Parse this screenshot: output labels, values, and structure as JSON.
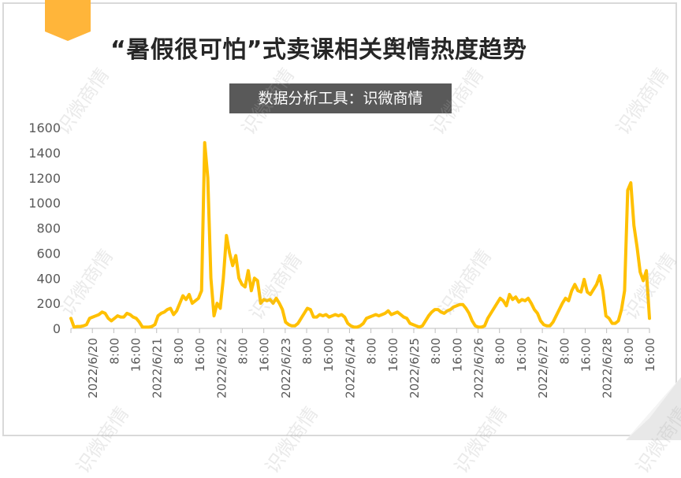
{
  "title": "“暑假很可怕”式卖课相关舆情热度趋势",
  "subtitle": "数据分析工具：识微商情",
  "watermark_text": "识微商情",
  "colors": {
    "line": "#FFC000",
    "accent": "#FFB53A",
    "axis": "#bfbfbf",
    "text": "#595959"
  },
  "chart_data": {
    "type": "line",
    "title": "“暑假很可怕”式卖课相关舆情热度趋势",
    "xlabel": "",
    "ylabel": "",
    "ylim": [
      0,
      1600
    ],
    "yticks": [
      0,
      200,
      400,
      600,
      800,
      1000,
      1200,
      1400,
      1600
    ],
    "grid": false,
    "x_tick_labels": [
      "2022/6/20",
      "8:00",
      "16:00",
      "2022/6/21",
      "8:00",
      "16:00",
      "2022/6/22",
      "8:00",
      "16:00",
      "2022/6/23",
      "8:00",
      "16:00",
      "2022/6/24",
      "8:00",
      "16:00",
      "2022/6/25",
      "8:00",
      "16:00",
      "2022/6/26",
      "8:00",
      "16:00",
      "2022/6/27",
      "8:00",
      "16:00",
      "2022/6/28",
      "8:00",
      "16:00"
    ],
    "x_hours_per_tick": 8,
    "series": [
      {
        "values": [
          80,
          10,
          15,
          15,
          20,
          30,
          80,
          90,
          100,
          110,
          130,
          120,
          80,
          60,
          80,
          100,
          90,
          90,
          120,
          110,
          90,
          80,
          50,
          10,
          10,
          10,
          15,
          30,
          100,
          120,
          130,
          150,
          160,
          110,
          140,
          200,
          260,
          230,
          270,
          200,
          220,
          240,
          300,
          1480,
          1200,
          400,
          100,
          200,
          160,
          400,
          740,
          600,
          500,
          580,
          400,
          350,
          330,
          460,
          300,
          400,
          380,
          200,
          230,
          220,
          230,
          200,
          240,
          200,
          150,
          50,
          30,
          20,
          20,
          40,
          80,
          120,
          160,
          150,
          90,
          90,
          110,
          100,
          110,
          90,
          100,
          110,
          100,
          110,
          90,
          40,
          20,
          10,
          10,
          20,
          40,
          80,
          90,
          100,
          110,
          100,
          110,
          120,
          140,
          110,
          120,
          130,
          110,
          90,
          80,
          40,
          30,
          20,
          10,
          20,
          60,
          100,
          130,
          150,
          150,
          130,
          120,
          140,
          150,
          170,
          180,
          190,
          190,
          160,
          120,
          60,
          20,
          10,
          10,
          20,
          80,
          120,
          160,
          200,
          240,
          220,
          180,
          270,
          230,
          250,
          210,
          230,
          220,
          240,
          200,
          150,
          120,
          60,
          30,
          20,
          20,
          50,
          100,
          150,
          200,
          240,
          220,
          300,
          350,
          300,
          290,
          390,
          290,
          270,
          310,
          350,
          420,
          300,
          100,
          80,
          40,
          40,
          60,
          150,
          300,
          1100,
          1160,
          820,
          650,
          450,
          380,
          460,
          80
        ]
      }
    ]
  }
}
